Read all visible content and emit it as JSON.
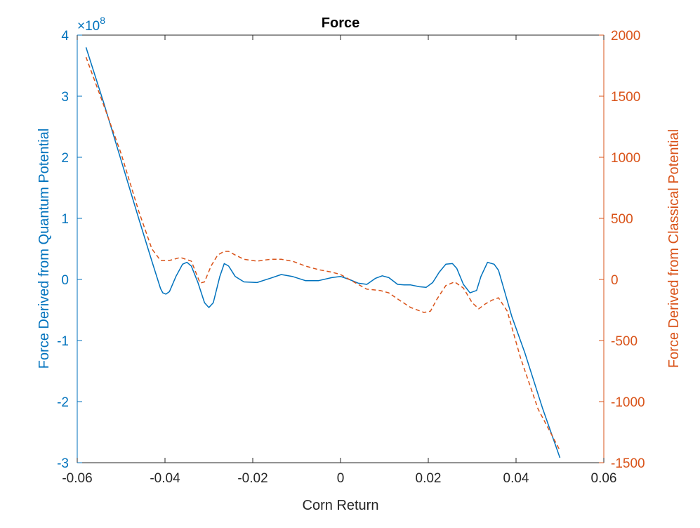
{
  "chart_data": {
    "type": "line",
    "title": "Force",
    "xlabel": "Corn Return",
    "ylabel_left": "Force Derived from Quantum Potential",
    "ylabel_right": "Force Derived from Classical Potential",
    "left_axis_exponent": "8",
    "left_axis_exponent_prefix": "×10",
    "xlim": [
      -0.06,
      0.06
    ],
    "ylim_left": [
      -3,
      4
    ],
    "ylim_right": [
      -1500,
      2000
    ],
    "x_ticks": [
      -0.06,
      -0.04,
      -0.02,
      0,
      0.02,
      0.04,
      0.06
    ],
    "x_tick_labels": [
      "-0.06",
      "-0.04",
      "-0.02",
      "0",
      "0.02",
      "0.04",
      "0.06"
    ],
    "y_left_ticks": [
      -3,
      -2,
      -1,
      0,
      1,
      2,
      3,
      4
    ],
    "y_left_tick_labels": [
      "-3",
      "-2",
      "-1",
      "0",
      "1",
      "2",
      "3",
      "4"
    ],
    "y_right_ticks": [
      -1500,
      -1000,
      -500,
      0,
      500,
      1000,
      1500,
      2000
    ],
    "y_right_tick_labels": [
      "-1500",
      "-1000",
      "-500",
      "0",
      "500",
      "1000",
      "1500",
      "2000"
    ],
    "colors": {
      "left": "#0072BD",
      "right": "#D95319",
      "axis": "#262626"
    },
    "series": [
      {
        "axis": "left",
        "style": "solid",
        "x": [
          -0.058,
          -0.054,
          -0.05,
          -0.046,
          -0.043,
          -0.041,
          -0.0405,
          -0.0398,
          -0.039,
          -0.0375,
          -0.036,
          -0.035,
          -0.034,
          -0.0325,
          -0.031,
          -0.03,
          -0.029,
          -0.0275,
          -0.0265,
          -0.0255,
          -0.024,
          -0.022,
          -0.019,
          -0.016,
          -0.0135,
          -0.011,
          -0.008,
          -0.005,
          -0.002,
          0.0,
          0.002,
          0.004,
          0.006,
          0.008,
          0.0095,
          0.011,
          0.013,
          0.0145,
          0.016,
          0.018,
          0.0195,
          0.021,
          0.0225,
          0.024,
          0.0255,
          0.0265,
          0.028,
          0.0295,
          0.031,
          0.032,
          0.0335,
          0.035,
          0.036,
          0.037,
          0.039,
          0.042,
          0.046,
          0.05
        ],
        "y": [
          3.8,
          2.9,
          1.95,
          1.0,
          0.3,
          -0.15,
          -0.22,
          -0.24,
          -0.2,
          0.05,
          0.25,
          0.28,
          0.22,
          -0.05,
          -0.38,
          -0.46,
          -0.38,
          0.05,
          0.26,
          0.22,
          0.05,
          -0.04,
          -0.05,
          0.02,
          0.08,
          0.05,
          -0.02,
          -0.02,
          0.03,
          0.05,
          0.0,
          -0.06,
          -0.08,
          0.02,
          0.06,
          0.03,
          -0.08,
          -0.09,
          -0.09,
          -0.12,
          -0.13,
          -0.05,
          0.12,
          0.25,
          0.26,
          0.18,
          -0.08,
          -0.22,
          -0.18,
          0.05,
          0.28,
          0.25,
          0.15,
          -0.1,
          -0.6,
          -1.2,
          -2.1,
          -2.92
        ]
      },
      {
        "axis": "right",
        "style": "dashed",
        "x": [
          -0.058,
          -0.054,
          -0.05,
          -0.046,
          -0.043,
          -0.041,
          -0.039,
          -0.0365,
          -0.034,
          -0.032,
          -0.031,
          -0.0295,
          -0.028,
          -0.0265,
          -0.0255,
          -0.024,
          -0.022,
          -0.019,
          -0.016,
          -0.0135,
          -0.011,
          -0.008,
          -0.005,
          -0.002,
          0.0,
          0.003,
          0.006,
          0.009,
          0.011,
          0.013,
          0.016,
          0.019,
          0.0205,
          0.022,
          0.024,
          0.026,
          0.028,
          0.03,
          0.0315,
          0.033,
          0.0345,
          0.036,
          0.038,
          0.041,
          0.045,
          0.05
        ],
        "y": [
          1820,
          1430,
          1030,
          560,
          250,
          155,
          155,
          180,
          150,
          -30,
          -20,
          110,
          200,
          230,
          230,
          200,
          165,
          150,
          165,
          165,
          150,
          110,
          80,
          60,
          40,
          -20,
          -80,
          -90,
          -110,
          -160,
          -230,
          -270,
          -260,
          -160,
          -50,
          -20,
          -70,
          -190,
          -240,
          -200,
          -170,
          -150,
          -260,
          -640,
          -1060,
          -1400
        ]
      }
    ]
  }
}
